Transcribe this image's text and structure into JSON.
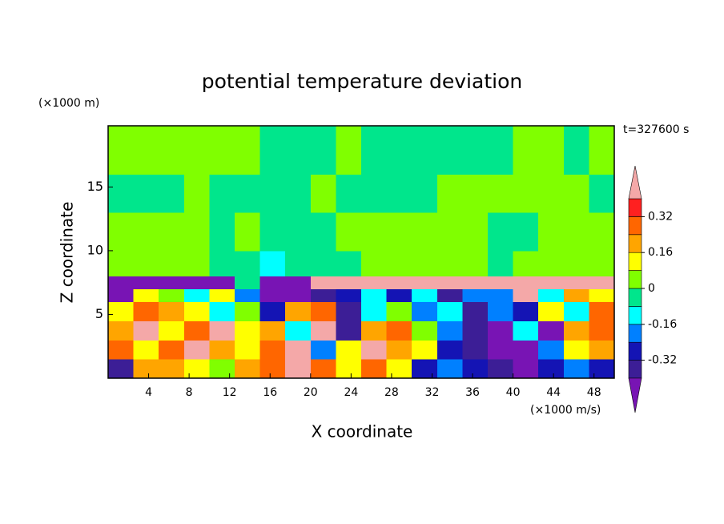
{
  "chart_data": {
    "type": "contour",
    "title": "potential temperature deviation",
    "x_label": "X coordinate",
    "y_label": "Z coordinate",
    "x_unit": "(×1000 m/s)",
    "y_unit": "(×1000 m)",
    "time_label": "t=327600 s",
    "xlim": [
      0,
      50
    ],
    "ylim": [
      0,
      19.8
    ],
    "xticks": [
      4,
      8,
      12,
      16,
      20,
      24,
      28,
      32,
      36,
      40,
      44,
      48
    ],
    "yticks": [
      5,
      10,
      15
    ],
    "x_edges": [
      0,
      2.5,
      5,
      7.5,
      10,
      12.5,
      15,
      17.5,
      20,
      22.5,
      25,
      27.5,
      30,
      32.5,
      35,
      37.5,
      40,
      42.5,
      45,
      47.5,
      50
    ],
    "y_edges": [
      0,
      1.5,
      3,
      4.5,
      6,
      7,
      8,
      10,
      13,
      16,
      19.8
    ],
    "z": [
      [
        -0.36,
        0.2,
        0.2,
        0.1,
        0.04,
        0.2,
        0.3,
        0.45,
        0.3,
        0.1,
        0.3,
        0.12,
        -0.28,
        -0.2,
        -0.28,
        -0.36,
        -0.45,
        -0.28,
        -0.2,
        -0.28
      ],
      [
        0.3,
        0.1,
        0.3,
        0.45,
        0.2,
        0.1,
        0.3,
        0.45,
        -0.2,
        0.12,
        0.45,
        0.2,
        0.1,
        -0.28,
        -0.36,
        -0.45,
        -0.45,
        -0.2,
        0.1,
        0.2
      ],
      [
        0.2,
        0.45,
        0.1,
        0.3,
        0.45,
        0.1,
        0.2,
        -0.1,
        0.45,
        -0.36,
        0.2,
        0.3,
        0.04,
        -0.2,
        -0.36,
        -0.45,
        -0.1,
        -0.45,
        0.2,
        0.3
      ],
      [
        0.1,
        0.3,
        0.2,
        0.1,
        -0.1,
        0.04,
        -0.28,
        0.2,
        0.3,
        -0.36,
        -0.1,
        0.04,
        -0.2,
        -0.1,
        -0.36,
        -0.2,
        -0.28,
        0.1,
        -0.1,
        0.3
      ],
      [
        -0.45,
        0.1,
        0.04,
        -0.1,
        0.1,
        -0.2,
        -0.45,
        -0.45,
        -0.36,
        -0.28,
        -0.1,
        -0.28,
        -0.1,
        -0.36,
        -0.2,
        -0.2,
        0.45,
        -0.1,
        0.2,
        0.1
      ],
      [
        -0.45,
        -0.45,
        -0.45,
        -0.45,
        -0.45,
        -0.04,
        -0.45,
        -0.45,
        0.45,
        0.45,
        0.45,
        0.45,
        0.45,
        0.45,
        0.45,
        0.45,
        0.45,
        0.45,
        0.45,
        0.45
      ],
      [
        0.04,
        0.04,
        0.04,
        0.04,
        -0.04,
        -0.04,
        -0.1,
        -0.04,
        -0.04,
        -0.04,
        0.04,
        0.04,
        0.04,
        0.04,
        0.04,
        -0.04,
        0.04,
        0.04,
        0.04,
        0.04
      ],
      [
        0.04,
        0.04,
        0.04,
        0.04,
        -0.04,
        0.04,
        -0.04,
        -0.04,
        -0.04,
        0.04,
        0.04,
        0.04,
        0.04,
        0.04,
        0.04,
        -0.04,
        -0.04,
        0.04,
        0.04,
        0.04
      ],
      [
        -0.04,
        -0.04,
        -0.04,
        0.04,
        -0.04,
        -0.04,
        -0.04,
        -0.04,
        0.04,
        -0.04,
        -0.04,
        -0.04,
        -0.04,
        0.04,
        0.04,
        0.04,
        0.04,
        0.04,
        0.04,
        -0.04
      ],
      [
        0.04,
        0.04,
        0.04,
        0.04,
        0.04,
        0.04,
        -0.04,
        -0.04,
        -0.04,
        0.04,
        -0.04,
        -0.04,
        -0.04,
        -0.04,
        -0.04,
        -0.04,
        0.04,
        0.04,
        -0.04,
        0.04
      ]
    ],
    "levels": [
      -0.4,
      -0.32,
      -0.24,
      -0.16,
      -0.08,
      0,
      0.08,
      0.16,
      0.24,
      0.32,
      0.4
    ],
    "colors": [
      "#7814b4",
      "#3c1e96",
      "#1414b4",
      "#0080ff",
      "#00ffff",
      "#00e68c",
      "#80ff00",
      "#ffff00",
      "#ffa500",
      "#ff6600",
      "#ff2020",
      "#f4a8a8"
    ],
    "colorbar_ticks": [
      0.32,
      0.16,
      0,
      -0.16,
      -0.32
    ]
  }
}
